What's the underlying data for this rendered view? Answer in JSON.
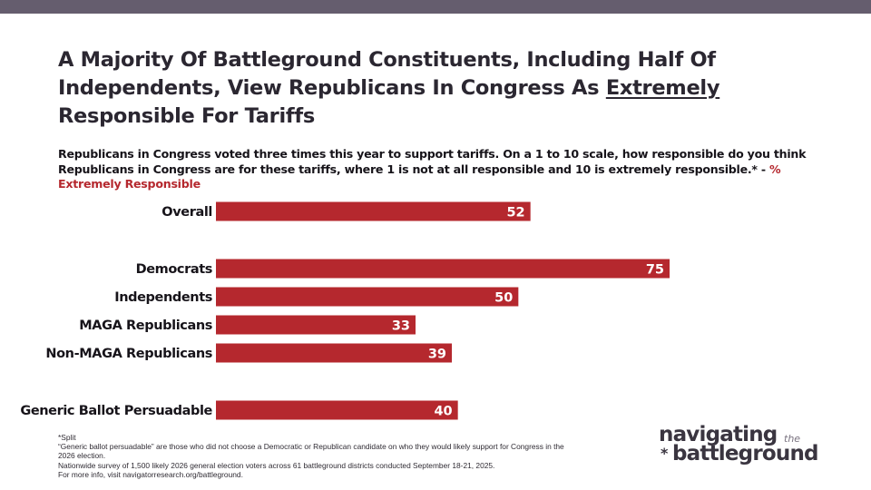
{
  "header": {
    "title_main": "A Majority Of Battleground Constituents, Including Half Of Independents, View Republicans In Congress As ",
    "title_underlined": "Extremely",
    "title_end": " Responsible For Tariffs",
    "subtitle_main": "Republicans in Congress voted three times this year to support tariffs. On a 1 to 10 scale, how responsible do you think Republicans in Congress are for these tariffs, where 1 is not at all responsible and 10 is extremely responsible.* - ",
    "subtitle_accent": "% Extremely Responsible"
  },
  "colors": {
    "bar": "#b5282e",
    "accent": "#b5282e",
    "topbar": "#655d6e",
    "label_text": "#17141a",
    "value_text": "#ffffff"
  },
  "chart_data": {
    "type": "bar",
    "orientation": "horizontal",
    "title": "A Majority Of Battleground Constituents, Including Half Of Independents, View Republicans In Congress As Extremely Responsible For Tariffs",
    "xlabel": "",
    "ylabel": "% Extremely Responsible",
    "xlim": [
      0,
      100
    ],
    "grid": false,
    "legend": "none",
    "categories": [
      "Overall",
      "Democrats",
      "Independents",
      "MAGA Republicans",
      "Non-MAGA Republicans",
      "Generic Ballot Persuadable"
    ],
    "groups": [
      0,
      1,
      1,
      1,
      1,
      2
    ],
    "values": [
      52,
      75,
      50,
      33,
      39,
      40
    ],
    "data_labels": [
      "52",
      "75",
      "50",
      "33",
      "39",
      "40"
    ]
  },
  "footnotes": [
    "*Split",
    "“Generic ballot persuadable” are those who did not choose a Democratic or Republican candidate on who they would likely support for Congress in the 2026 election.",
    "Nationwide survey of 1,500 likely 2026 general election voters across 61 battleground districts conducted September 18-21, 2025.",
    "For more info, visit navigatorresearch.org/battleground."
  ],
  "logo": {
    "line1": "navigating",
    "the": "the",
    "star": "*",
    "line2": "battleground"
  }
}
